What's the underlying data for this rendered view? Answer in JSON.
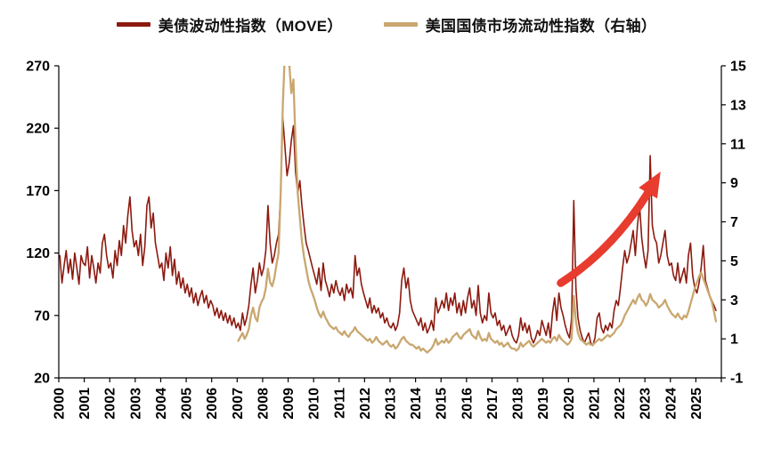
{
  "chart_data": {
    "type": "line",
    "title": "",
    "grid": false,
    "legend_position": "top",
    "background": "#ffffff",
    "text_color": "#000000",
    "x_axis": {
      "min": 2000,
      "max": 2026,
      "tick_years": [
        2000,
        2001,
        2002,
        2003,
        2004,
        2005,
        2006,
        2007,
        2008,
        2009,
        2010,
        2011,
        2012,
        2013,
        2014,
        2015,
        2016,
        2017,
        2018,
        2019,
        2020,
        2021,
        2022,
        2023,
        2024,
        2025
      ]
    },
    "left_axis": {
      "min": 20,
      "max": 270,
      "ticks": [
        270,
        220,
        170,
        120,
        70,
        20
      ]
    },
    "right_axis": {
      "min": -1,
      "max": 15,
      "ticks": [
        15,
        13,
        11,
        9,
        7,
        5,
        3,
        1,
        -1
      ]
    },
    "series": [
      {
        "name": "美债波动性指数（MOVE）",
        "color": "#8c1a10",
        "axis": "left",
        "start_year": 2000,
        "frequency": "monthly",
        "line_width": 1.6,
        "values": [
          118,
          96,
          110,
          122,
          104,
          115,
          99,
          120,
          108,
          95,
          118,
          112,
          110,
          125,
          100,
          118,
          108,
          96,
          112,
          104,
          128,
          135,
          118,
          108,
          112,
          100,
          122,
          110,
          130,
          118,
          142,
          128,
          150,
          165,
          138,
          125,
          130,
          118,
          135,
          110,
          125,
          158,
          165,
          140,
          152,
          128,
          118,
          108,
          112,
          98,
          120,
          108,
          125,
          102,
          115,
          95,
          105,
          92,
          100,
          88,
          95,
          85,
          92,
          80,
          88,
          78,
          85,
          90,
          80,
          86,
          76,
          82,
          78,
          70,
          76,
          68,
          74,
          66,
          72,
          64,
          70,
          62,
          68,
          60,
          64,
          58,
          72,
          62,
          68,
          78,
          95,
          108,
          88,
          98,
          112,
          102,
          108,
          122,
          158,
          128,
          112,
          118,
          128,
          135,
          168,
          228,
          205,
          182,
          192,
          210,
          222,
          185,
          168,
          178,
          158,
          142,
          128,
          122,
          115,
          108,
          102,
          95,
          108,
          90,
          112,
          98,
          92,
          85,
          95,
          88,
          98,
          90,
          86,
          92,
          82,
          95,
          88,
          92,
          84,
          118,
          102,
          108,
          95,
          88,
          82,
          76,
          84,
          72,
          78,
          72,
          76,
          68,
          72,
          64,
          68,
          62,
          60,
          64,
          58,
          62,
          72,
          98,
          108,
          92,
          100,
          82,
          74,
          70,
          66,
          62,
          68,
          58,
          64,
          56,
          60,
          66,
          58,
          84,
          72,
          76,
          82,
          76,
          88,
          74,
          84,
          78,
          88,
          72,
          80,
          70,
          82,
          72,
          84,
          92,
          76,
          82,
          70,
          94,
          72,
          64,
          70,
          66,
          88,
          72,
          68,
          72,
          62,
          66,
          58,
          62,
          54,
          58,
          62,
          54,
          50,
          48,
          54,
          68,
          58,
          64,
          56,
          62,
          52,
          48,
          52,
          58,
          54,
          66,
          60,
          54,
          64,
          52,
          72,
          84,
          66,
          88,
          76,
          70,
          62,
          56,
          52,
          68,
          162,
          92,
          68,
          58,
          52,
          48,
          52,
          56,
          48,
          46,
          52,
          68,
          72,
          60,
          56,
          62,
          58,
          64,
          60,
          74,
          82,
          78,
          92,
          108,
          122,
          112,
          118,
          128,
          138,
          118,
          142,
          158,
          132,
          118,
          108,
          122,
          198,
          142,
          132,
          128,
          112,
          118,
          128,
          138,
          118,
          110,
          112,
          102,
          98,
          112,
          96,
          102,
          108,
          96,
          118,
          128,
          102,
          92,
          88,
          96,
          108,
          126,
          98,
          92,
          86,
          82,
          78,
          74
        ]
      },
      {
        "name": "美国国债市场流动性指数（右轴）",
        "color": "#c9a76f",
        "axis": "right",
        "start_year": 2007,
        "frequency": "monthly",
        "line_width": 2.3,
        "values": [
          0.9,
          1.1,
          1.3,
          1.0,
          1.2,
          1.5,
          2.2,
          2.6,
          2.1,
          1.9,
          2.6,
          2.9,
          3.1,
          3.6,
          4.6,
          3.9,
          3.7,
          4.1,
          4.8,
          5.4,
          8.5,
          13.0,
          15.8,
          16.2,
          15.2,
          13.6,
          14.3,
          11.0,
          8.5,
          7.2,
          6.0,
          5.2,
          4.6,
          4.0,
          3.6,
          3.3,
          3.0,
          2.6,
          2.3,
          2.1,
          2.4,
          2.1,
          1.9,
          1.7,
          1.6,
          1.5,
          1.6,
          1.4,
          1.3,
          1.2,
          1.4,
          1.2,
          1.1,
          1.3,
          1.4,
          1.6,
          1.4,
          1.3,
          1.2,
          1.1,
          1.0,
          0.9,
          1.0,
          0.8,
          0.9,
          1.1,
          0.9,
          0.8,
          0.7,
          0.8,
          0.9,
          0.7,
          0.6,
          0.7,
          0.5,
          0.6,
          0.8,
          1.0,
          1.1,
          0.9,
          0.8,
          0.7,
          0.7,
          0.6,
          0.5,
          0.6,
          0.4,
          0.5,
          0.4,
          0.3,
          0.4,
          0.5,
          0.7,
          1.0,
          0.7,
          0.8,
          0.9,
          0.8,
          1.0,
          0.8,
          0.9,
          1.1,
          1.2,
          1.3,
          1.1,
          1.0,
          1.2,
          1.3,
          1.4,
          1.5,
          1.2,
          1.1,
          1.0,
          1.4,
          1.1,
          0.9,
          1.0,
          0.9,
          1.3,
          1.0,
          0.9,
          0.8,
          0.9,
          0.7,
          0.8,
          0.6,
          0.7,
          0.8,
          0.6,
          0.5,
          0.5,
          0.4,
          0.5,
          0.8,
          0.6,
          0.7,
          0.8,
          0.9,
          0.7,
          0.6,
          0.7,
          0.8,
          0.9,
          1.0,
          0.9,
          0.8,
          0.9,
          0.8,
          1.0,
          1.1,
          0.9,
          1.2,
          1.0,
          0.9,
          0.8,
          0.7,
          0.8,
          1.0,
          3.2,
          1.9,
          1.3,
          1.0,
          0.9,
          0.8,
          0.7,
          0.8,
          0.7,
          0.7,
          0.8,
          0.9,
          1.0,
          0.9,
          1.0,
          1.1,
          1.2,
          1.1,
          1.2,
          1.3,
          1.5,
          1.6,
          1.7,
          1.9,
          2.2,
          2.4,
          2.6,
          2.8,
          3.0,
          2.8,
          3.1,
          3.3,
          3.0,
          2.9,
          2.7,
          2.9,
          3.3,
          3.0,
          2.9,
          2.8,
          2.6,
          2.7,
          2.8,
          3.0,
          2.7,
          2.5,
          2.3,
          2.2,
          2.1,
          2.3,
          2.1,
          2.0,
          2.2,
          2.1,
          2.4,
          2.8,
          3.2,
          3.6,
          3.9,
          4.2,
          4.4,
          4.1,
          3.8,
          3.5,
          3.2,
          2.9,
          2.4,
          1.9
        ]
      }
    ],
    "annotation_arrow": {
      "color": "#e73c2e",
      "value_axis": "left",
      "from": {
        "year": 2019.7,
        "value": 96
      },
      "to": {
        "year": 2023.35,
        "value": 176
      }
    }
  }
}
